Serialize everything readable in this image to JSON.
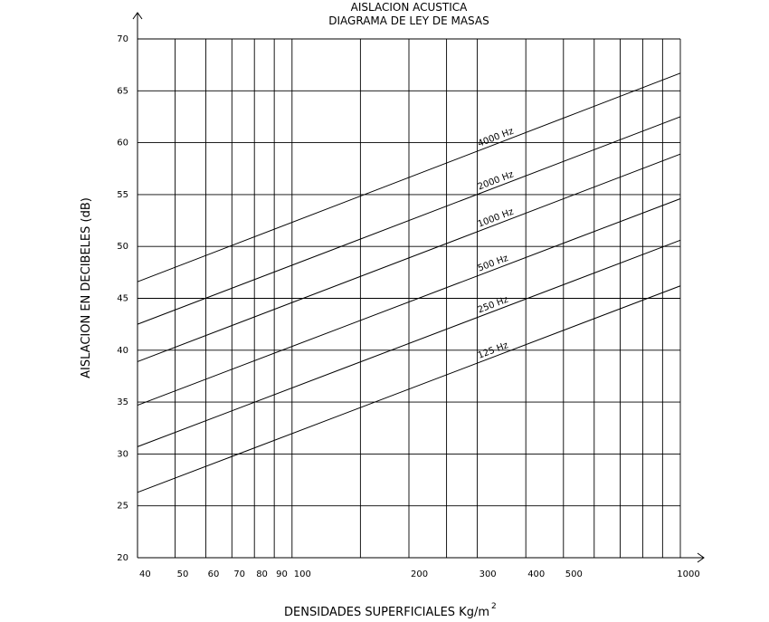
{
  "chart_data": {
    "type": "line",
    "title": "AISLACION ACUSTICA",
    "subtitle": "DIAGRAMA DE LEY DE MASAS",
    "xlabel": "DENSIDADES SUPERFICIALES Kg/m",
    "xlabel_superscript": "2",
    "ylabel": "AISLACION EN DECIBELES (dB)",
    "x_scale": "log",
    "xlim": [
      40,
      1000
    ],
    "ylim": [
      20,
      70
    ],
    "grid": true,
    "x_ticks": [
      40,
      50,
      60,
      70,
      80,
      90,
      100,
      200,
      300,
      400,
      500,
      1000
    ],
    "x_tick_labels": [
      "40",
      "50",
      "60",
      "70",
      "80",
      "90",
      "100",
      "200",
      "300",
      "400",
      "500",
      "1000"
    ],
    "x_gridlines": [
      40,
      50,
      60,
      70,
      80,
      90,
      100,
      150,
      200,
      250,
      300,
      400,
      500,
      600,
      700,
      800,
      900,
      1000
    ],
    "y_ticks": [
      20,
      25,
      30,
      35,
      40,
      45,
      50,
      55,
      60,
      65,
      70
    ],
    "y_tick_labels": [
      "20",
      "25",
      "30",
      "35",
      "40",
      "45",
      "50",
      "55",
      "60",
      "65",
      "70"
    ],
    "series": [
      {
        "name": "125 Hz",
        "x": [
          40,
          1000
        ],
        "y": [
          26.3,
          46.2
        ],
        "label_at": 300
      },
      {
        "name": "250 Hz",
        "x": [
          40,
          1000
        ],
        "y": [
          30.7,
          50.6
        ],
        "label_at": 300
      },
      {
        "name": "500 Hz",
        "x": [
          40,
          1000
        ],
        "y": [
          34.7,
          54.6
        ],
        "label_at": 300
      },
      {
        "name": "1000 Hz",
        "x": [
          40,
          1000
        ],
        "y": [
          38.9,
          58.9
        ],
        "label_at": 300
      },
      {
        "name": "2000 Hz",
        "x": [
          40,
          1000
        ],
        "y": [
          42.5,
          62.5
        ],
        "label_at": 300
      },
      {
        "name": "4000 Hz",
        "x": [
          40,
          1000
        ],
        "y": [
          46.6,
          66.7
        ],
        "label_at": 300
      }
    ]
  }
}
